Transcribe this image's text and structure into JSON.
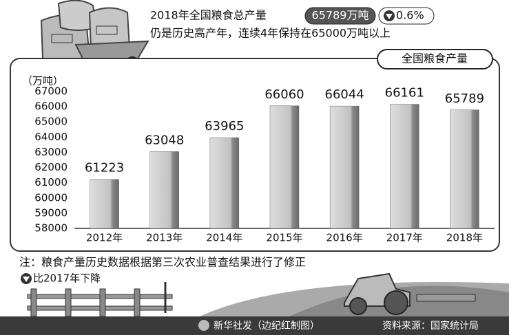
{
  "chart_data": {
    "type": "bar",
    "headline": {
      "line1": "2018年全国粮食总产量",
      "amount": "65789万吨",
      "change": "0.6%",
      "line2": "仍是历史高产年，连续4年保持在65000万吨以上"
    },
    "title": "全国粮食产量",
    "y_label": "（万吨）",
    "categories": [
      "2012年",
      "2013年",
      "2014年",
      "2015年",
      "2016年",
      "2017年",
      "2018年"
    ],
    "values": [
      61223,
      63048,
      63965,
      66060,
      66044,
      66161,
      65789
    ],
    "color": "#c4c4c4",
    "ylim": [
      58000,
      67000
    ],
    "yticks": [
      58000,
      59000,
      60000,
      61000,
      62000,
      63000,
      64000,
      65000,
      66000,
      67000
    ],
    "note": "注：粮食产量历史数据根据第三次农业普查结果进行了修正",
    "legend_note": "比2017年下降",
    "credit": "新华社发（边纪红制图）",
    "source": "资料来源：国家统计局"
  }
}
